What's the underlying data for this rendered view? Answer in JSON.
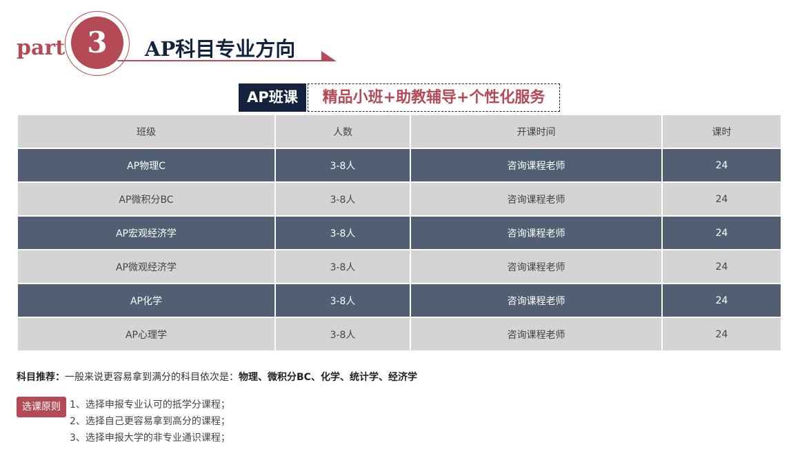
{
  "header": {
    "part": "part",
    "number": "3",
    "title": "AP科目专业方向"
  },
  "banner": {
    "tag": "AP班课",
    "slogan": "精品小班+助教辅导+个性化服务"
  },
  "table": {
    "headers": [
      "班级",
      "人数",
      "开课时间",
      "课时"
    ],
    "rows": [
      [
        "AP物理C",
        "3-8人",
        "咨询课程老师",
        "24"
      ],
      [
        "AP微积分BC",
        "3-8人",
        "咨询课程老师",
        "24"
      ],
      [
        "AP宏观经济学",
        "3-8人",
        "咨询课程老师",
        "24"
      ],
      [
        "AP微观经济学",
        "3-8人",
        "咨询课程老师",
        "24"
      ],
      [
        "AP化学",
        "3-8人",
        "咨询课程老师",
        "24"
      ],
      [
        "AP心理学",
        "3-8人",
        "咨询课程老师",
        "24"
      ]
    ]
  },
  "recommend": {
    "label": "科目推荐：",
    "text": "一般来说更容易拿到满分的科目依次是：",
    "subjects": "物理、微积分BC、化学、统计学、经济学"
  },
  "principles": {
    "badge": "选课原则",
    "items": [
      "1、选择申报专业认可的抵学分课程；",
      "2、选择自己更容易拿到高分的课程；",
      "3、选择申报大学的非专业通识课程；"
    ]
  },
  "colors": {
    "accent": "#b34a55",
    "navy": "#14233d",
    "dark_row": "#525f72",
    "light_row": "#d4d4d4"
  }
}
